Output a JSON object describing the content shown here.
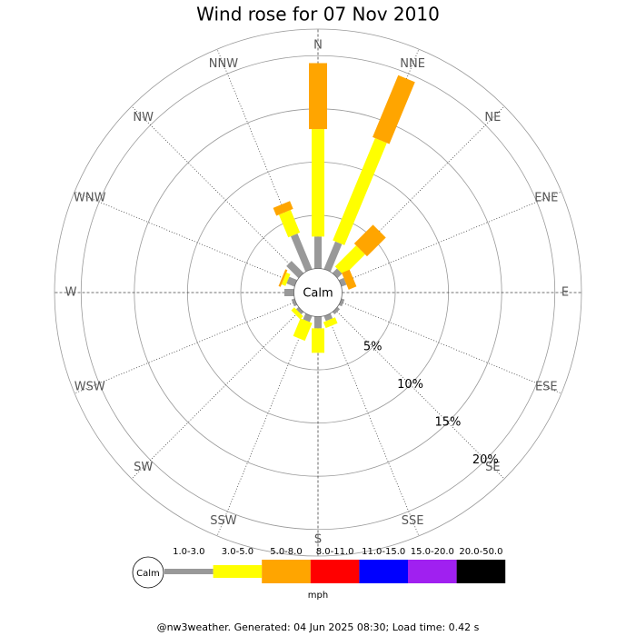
{
  "chart_data": {
    "type": "windrose",
    "title": "Wind rose for 07 Nov 2010",
    "directions": [
      "N",
      "NNE",
      "NE",
      "ENE",
      "E",
      "ESE",
      "SE",
      "SSE",
      "S",
      "SSW",
      "SW",
      "WSW",
      "W",
      "WNW",
      "NW",
      "NNW"
    ],
    "center_label": "Calm",
    "unit": "mph",
    "rlim": [
      0,
      22.5
    ],
    "rticks": [
      {
        "value": 5,
        "label": "5%"
      },
      {
        "value": 10,
        "label": "10%"
      },
      {
        "value": 15,
        "label": "15%"
      },
      {
        "value": 20,
        "label": "20%"
      }
    ],
    "series": [
      {
        "name": "1.0-3.0",
        "color": "#999999",
        "values": [
          3.0,
          2.8,
          0.6,
          0.5,
          0,
          0.3,
          0.3,
          0.5,
          1.1,
          0.6,
          0.3,
          0.3,
          0.9,
          0.8,
          1.6,
          3.6
        ]
      },
      {
        "name": "3.0-5.0",
        "color": "#ffff00",
        "values": [
          10.1,
          10.4,
          2.8,
          0,
          0,
          0,
          0,
          0.6,
          2.3,
          1.8,
          0.4,
          0,
          0,
          0.4,
          0,
          2.3
        ]
      },
      {
        "name": "5.0-8.0",
        "color": "#ffa500",
        "values": [
          6.2,
          6.3,
          2.5,
          0.8,
          0,
          0,
          0,
          0,
          0,
          0,
          0,
          0,
          0,
          0.2,
          0,
          0.8
        ]
      },
      {
        "name": "8.0-11.0",
        "color": "#ff0000",
        "values": [
          0,
          0,
          0,
          0,
          0,
          0,
          0,
          0,
          0,
          0,
          0,
          0,
          0,
          0,
          0,
          0
        ]
      },
      {
        "name": "11.0-15.0",
        "color": "#0000ff",
        "values": [
          0,
          0,
          0,
          0,
          0,
          0,
          0,
          0,
          0,
          0,
          0,
          0,
          0,
          0,
          0,
          0
        ]
      },
      {
        "name": "15.0-20.0",
        "color": "#a020f0",
        "values": [
          0,
          0,
          0,
          0,
          0,
          0,
          0,
          0,
          0,
          0,
          0,
          0,
          0,
          0,
          0,
          0
        ]
      },
      {
        "name": "20.0-50.0",
        "color": "#000000",
        "values": [
          0,
          0,
          0,
          0,
          0,
          0,
          0,
          0,
          0,
          0,
          0,
          0,
          0,
          0,
          0,
          0
        ]
      }
    ]
  },
  "footer": "@nw3weather. Generated: 04 Jun 2025 08:30; Load time: 0.42 s"
}
